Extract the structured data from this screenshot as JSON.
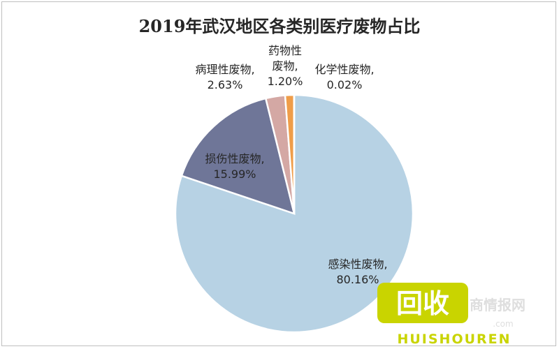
{
  "chart_data": {
    "type": "pie",
    "title": "2019年武汉地区各类别医疗废物占比",
    "slices": [
      {
        "name": "感染性废物",
        "value": 80.16,
        "label": "80.16%",
        "color": "#b7d2e4"
      },
      {
        "name": "损伤性废物",
        "value": 15.99,
        "label": "15.99%",
        "color": "#6f7698"
      },
      {
        "name": "病理性废物",
        "value": 2.63,
        "label": "2.63%",
        "color": "#d4a8a4"
      },
      {
        "name": "药物性废物",
        "value": 1.2,
        "label": "1.20%",
        "color": "#ef9d49"
      },
      {
        "name": "化学性废物",
        "value": 0.02,
        "label": "0.02%",
        "color": "#7f7f7f"
      }
    ]
  },
  "watermark": {
    "logo_text": "回收",
    "site_text": "商情报网",
    "domain_text": ".com",
    "latin_text": "HUISHOUREN",
    "color": "#c9d400"
  }
}
